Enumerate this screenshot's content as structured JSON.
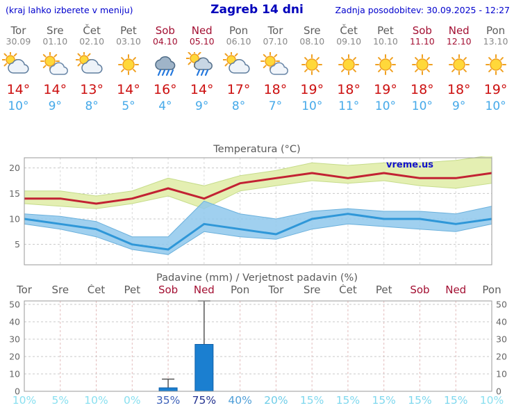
{
  "header": {
    "left_note": "(kraj lahko izberete v meniju)",
    "title": "Zagreb 14 dni",
    "updated": "Zadnja posodobitev: 30.09.2025 - 12:27"
  },
  "colors": {
    "header_blue": "#0000cd",
    "weekday": "#5c5c5c",
    "weekend": "#a30f32",
    "date_gray": "#888888",
    "temp_high": "#cc0f0f",
    "temp_low": "#45a9e9",
    "bar_blue": "#1b7fd0",
    "grid_gray": "#c8c8c8",
    "grid_pink": "#e2bcbc",
    "watermark_blue": "#1212cc"
  },
  "days": [
    {
      "name": "Tor",
      "date": "30.09",
      "weekend": false,
      "icon": "cloud-sun",
      "high": "14°",
      "low": "10°",
      "prob": "10%",
      "prob_color": "#8ae0f0"
    },
    {
      "name": "Sre",
      "date": "01.10",
      "weekend": false,
      "icon": "sun-cloud",
      "high": "14°",
      "low": "9°",
      "prob": "5%",
      "prob_color": "#8ae0f0"
    },
    {
      "name": "Čet",
      "date": "02.10",
      "weekend": false,
      "icon": "cloud-sun",
      "high": "13°",
      "low": "8°",
      "prob": "10%",
      "prob_color": "#8ae0f0"
    },
    {
      "name": "Pet",
      "date": "03.10",
      "weekend": false,
      "icon": "sun",
      "high": "14°",
      "low": "5°",
      "prob": "0%",
      "prob_color": "#8ae0f0"
    },
    {
      "name": "Sob",
      "date": "04.10",
      "weekend": true,
      "icon": "rain",
      "high": "16°",
      "low": "4°",
      "prob": "35%",
      "prob_color": "#3a5fb8"
    },
    {
      "name": "Ned",
      "date": "05.10",
      "weekend": true,
      "icon": "rain-sun",
      "high": "14°",
      "low": "9°",
      "prob": "75%",
      "prob_color": "#22318f"
    },
    {
      "name": "Pon",
      "date": "06.10",
      "weekend": false,
      "icon": "cloud-sun",
      "high": "17°",
      "low": "8°",
      "prob": "40%",
      "prob_color": "#4f9fd8"
    },
    {
      "name": "Tor",
      "date": "07.10",
      "weekend": false,
      "icon": "sun-cloud",
      "high": "18°",
      "low": "7°",
      "prob": "20%",
      "prob_color": "#6fcde8"
    },
    {
      "name": "Sre",
      "date": "08.10",
      "weekend": false,
      "icon": "sun",
      "high": "19°",
      "low": "10°",
      "prob": "15%",
      "prob_color": "#7fd8ee"
    },
    {
      "name": "Čet",
      "date": "09.10",
      "weekend": false,
      "icon": "sun",
      "high": "18°",
      "low": "11°",
      "prob": "15%",
      "prob_color": "#7fd8ee"
    },
    {
      "name": "Pet",
      "date": "10.10",
      "weekend": false,
      "icon": "sun",
      "high": "19°",
      "low": "10°",
      "prob": "15%",
      "prob_color": "#7fd8ee"
    },
    {
      "name": "Sob",
      "date": "11.10",
      "weekend": true,
      "icon": "sun",
      "high": "18°",
      "low": "10°",
      "prob": "15%",
      "prob_color": "#7fd8ee"
    },
    {
      "name": "Ned",
      "date": "12.10",
      "weekend": true,
      "icon": "sun",
      "high": "18°",
      "low": "9°",
      "prob": "15%",
      "prob_color": "#7fd8ee"
    },
    {
      "name": "Pon",
      "date": "13.10",
      "weekend": false,
      "icon": "sun",
      "high": "19°",
      "low": "10°",
      "prob": "10%",
      "prob_color": "#8ae0f0"
    }
  ],
  "chart_data": [
    {
      "type": "line",
      "title": "Temperatura (°C)",
      "watermark": "vreme.us",
      "x_labels": [
        "Tor",
        "Sre",
        "Čet",
        "Pet",
        "Sob",
        "Ned",
        "Pon",
        "Tor",
        "Sre",
        "Čet",
        "Pet",
        "Sob",
        "Ned",
        "Pon"
      ],
      "ylim": [
        1,
        22
      ],
      "yticks": [
        5,
        10,
        15,
        20
      ],
      "series": [
        {
          "name": "max-temperature",
          "color": "#c22233",
          "values": [
            14,
            14,
            13,
            14,
            16,
            14,
            17,
            18,
            19,
            18,
            19,
            18,
            18,
            19
          ]
        },
        {
          "name": "min-temperature",
          "color": "#2f97d8",
          "values": [
            10,
            9,
            8,
            5,
            4,
            9,
            8,
            7,
            10,
            11,
            10,
            10,
            9,
            10
          ]
        }
      ],
      "bands": [
        {
          "name": "max-temperature-range",
          "color": "#e4efb2",
          "upper": [
            15.5,
            15.5,
            14.5,
            15.5,
            18,
            16.5,
            18.5,
            19.5,
            21,
            20.5,
            21,
            21,
            21.5,
            22.5
          ],
          "lower": [
            13,
            12.5,
            12,
            13,
            14.5,
            12,
            15.5,
            16.5,
            17.5,
            17,
            17.5,
            16.5,
            16,
            17
          ]
        },
        {
          "name": "min-temperature-range",
          "color": "#8fc8ec",
          "upper": [
            11,
            10.5,
            9.5,
            6.5,
            6.5,
            13.5,
            11,
            10,
            11.5,
            12,
            11.5,
            11.5,
            11,
            12.5
          ],
          "lower": [
            9,
            8,
            6.5,
            4,
            3,
            7.5,
            6.5,
            6,
            8,
            9,
            8.5,
            8,
            7.5,
            9
          ]
        }
      ]
    },
    {
      "type": "bar",
      "title": "Padavine (mm) / Verjetnost padavin (%)",
      "x_labels": [
        "Tor",
        "Sre",
        "Čet",
        "Pet",
        "Sob",
        "Ned",
        "Pon",
        "Tor",
        "Sre",
        "Čet",
        "Pet",
        "Sob",
        "Ned",
        "Pon"
      ],
      "ylim": [
        0,
        52
      ],
      "yticks": [
        0,
        10,
        20,
        30,
        40,
        50
      ],
      "values": [
        0,
        0,
        0,
        0,
        2,
        27,
        0,
        0,
        0,
        0,
        0,
        0,
        0,
        0
      ],
      "whisker_max": [
        0,
        0,
        0,
        0,
        7,
        52,
        0,
        0,
        0,
        0,
        0,
        0,
        0,
        0
      ],
      "probabilities": [
        10,
        5,
        10,
        0,
        35,
        75,
        40,
        20,
        15,
        15,
        15,
        15,
        15,
        10
      ]
    }
  ]
}
